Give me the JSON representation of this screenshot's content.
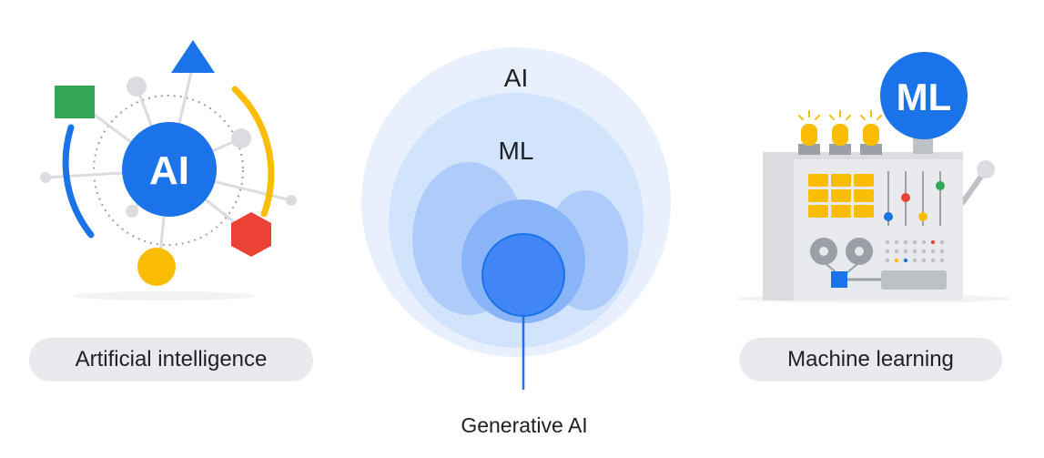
{
  "left_illustration": {
    "badge_text": "AI",
    "caption": "Artificial intelligence"
  },
  "center_diagram": {
    "outer_label": "AI",
    "middle_label": "ML",
    "callout_label": "Generative AI"
  },
  "right_illustration": {
    "badge_text": "ML",
    "caption": "Machine learning"
  },
  "colors": {
    "google_blue": "#1a73e8",
    "google_red": "#ea4335",
    "google_yellow": "#fbbc04",
    "google_green": "#34a853",
    "outer_circle": "#e8f0fe",
    "middle_circle": "#d2e3fc",
    "inner_blob": "#aecbfa",
    "core_circle": "#4285f4",
    "pill_background": "#e8eaed"
  }
}
